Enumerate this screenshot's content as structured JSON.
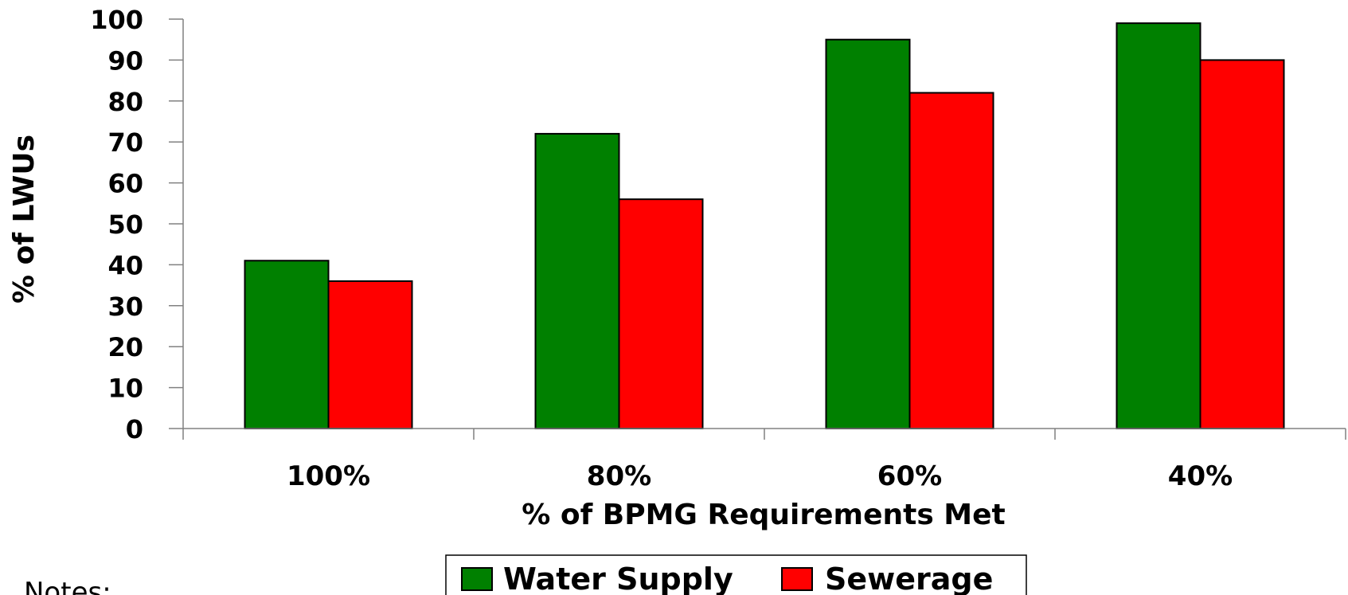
{
  "chart_data": {
    "type": "bar",
    "categories": [
      "100%",
      "80%",
      "60%",
      "40%"
    ],
    "series": [
      {
        "name": "Water Supply",
        "color": "#008000",
        "values": [
          41,
          72,
          95,
          99
        ]
      },
      {
        "name": "Sewerage",
        "color": "#ff0000",
        "values": [
          36,
          56,
          82,
          90
        ]
      }
    ],
    "xlabel": "% of BPMG Requirements Met",
    "ylabel": "% of LWUs",
    "ylim": [
      0,
      100
    ],
    "yticks": [
      "0",
      "10",
      "20",
      "30",
      "40",
      "50",
      "60",
      "70",
      "80",
      "90",
      "100"
    ],
    "grid": false,
    "legend_position": "bottom-center"
  },
  "notes_label": "Notes:"
}
